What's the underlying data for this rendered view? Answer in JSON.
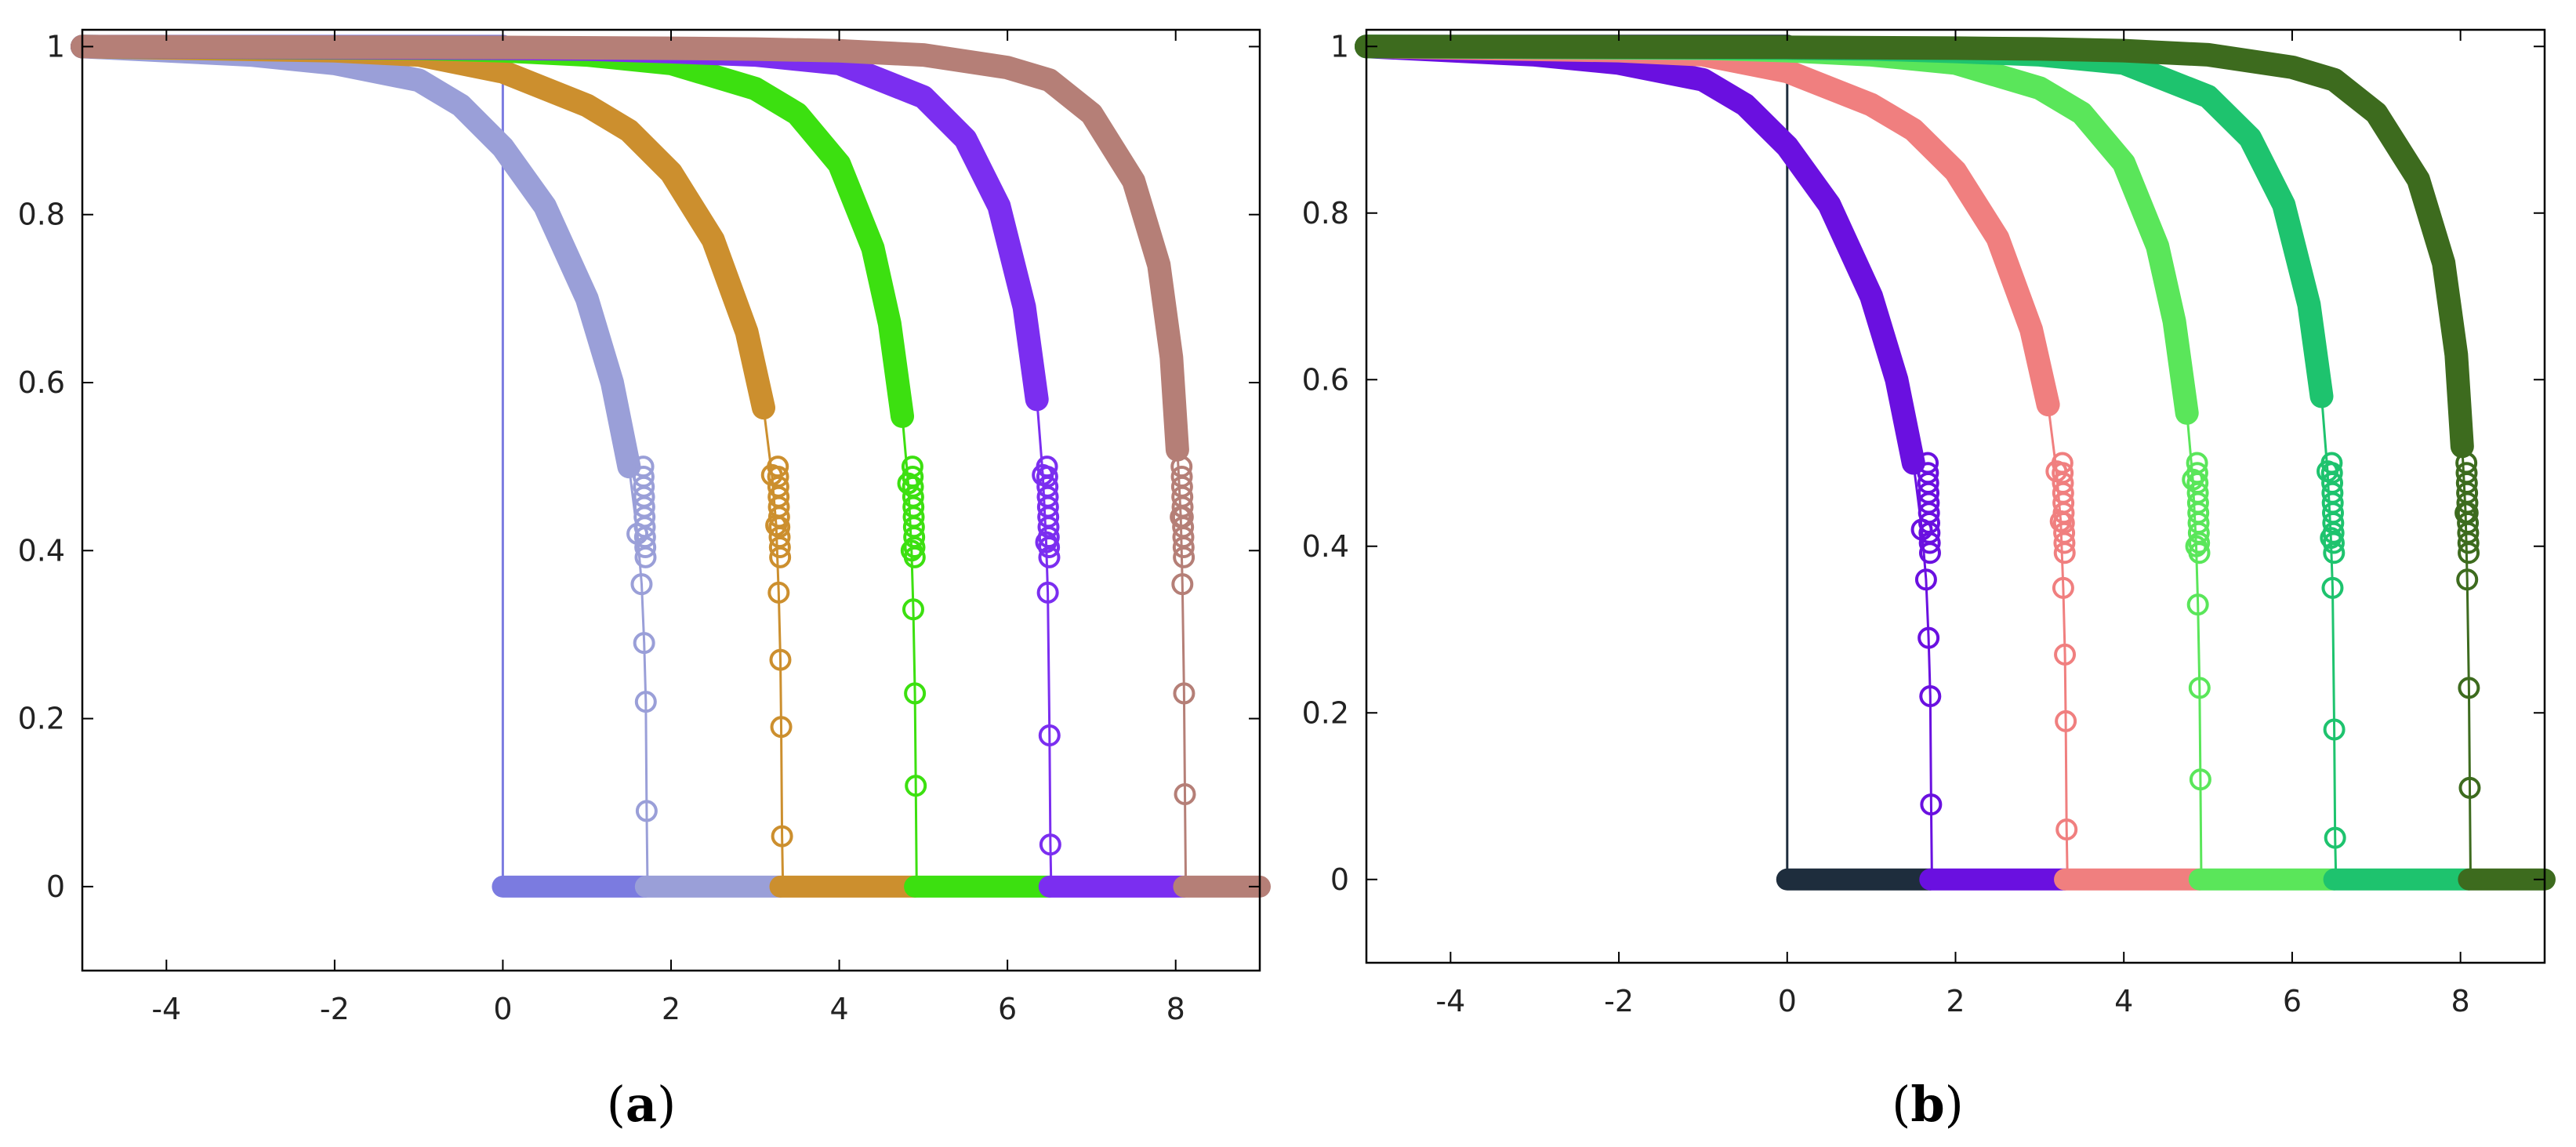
{
  "panels": [
    {
      "label_prefix": "(",
      "label_letter": "a",
      "label_suffix": ")"
    },
    {
      "label_prefix": "(",
      "label_letter": "b",
      "label_suffix": ")"
    }
  ],
  "chart_data": [
    {
      "type": "scatter",
      "title": "",
      "xlabel": "",
      "ylabel": "",
      "xlim": [
        -5,
        9
      ],
      "ylim": [
        -0.1,
        1.02
      ],
      "xticks": [
        -4,
        -2,
        0,
        2,
        4,
        6,
        8
      ],
      "xtick_labels": [
        "-4",
        "-2",
        "0",
        "2",
        "4",
        "6",
        "8"
      ],
      "yticks": [
        0,
        0.2,
        0.4,
        0.6,
        0.8,
        1
      ],
      "ytick_labels": [
        "0",
        "0.2",
        "0.4",
        "0.6",
        "0.8",
        "1"
      ],
      "grid": false,
      "legend": "none",
      "marker": "open-circle",
      "series": [
        {
          "color": "#7b7be0",
          "x0": 0,
          "values_note": "step",
          "x": [
            -5,
            -0.01,
            0.0,
            0.0,
            9
          ],
          "y": [
            1,
            1,
            1,
            0,
            0
          ]
        },
        {
          "color": "#9a9fd8",
          "x0": 1.7,
          "x": [
            -5,
            -3,
            -2,
            -1,
            -0.5,
            0,
            0.5,
            1.0,
            1.3,
            1.5,
            1.6,
            1.65,
            1.68,
            1.7,
            1.71,
            1.72,
            1.73,
            9
          ],
          "y": [
            1,
            0.99,
            0.98,
            0.96,
            0.93,
            0.88,
            0.81,
            0.7,
            0.6,
            0.5,
            0.42,
            0.36,
            0.29,
            0.22,
            0.09,
            0.0,
            0.0,
            0
          ]
        },
        {
          "color": "#cc8f2e",
          "x0": 3.3,
          "x": [
            -5,
            -2,
            -1,
            0,
            1,
            1.5,
            2,
            2.5,
            2.9,
            3.1,
            3.2,
            3.25,
            3.28,
            3.3,
            3.31,
            3.32,
            3.33,
            9
          ],
          "y": [
            1,
            0.995,
            0.99,
            0.97,
            0.93,
            0.9,
            0.85,
            0.77,
            0.66,
            0.57,
            0.49,
            0.43,
            0.35,
            0.27,
            0.19,
            0.06,
            0.0,
            0
          ]
        },
        {
          "color": "#3ce010",
          "x0": 4.9,
          "x": [
            -5,
            -1,
            0,
            1,
            2,
            3,
            3.5,
            4,
            4.4,
            4.6,
            4.75,
            4.82,
            4.86,
            4.88,
            4.9,
            4.91,
            4.92,
            9
          ],
          "y": [
            1,
            0.998,
            0.995,
            0.99,
            0.98,
            0.95,
            0.92,
            0.86,
            0.76,
            0.67,
            0.56,
            0.48,
            0.4,
            0.33,
            0.23,
            0.12,
            0.0,
            0
          ]
        },
        {
          "color": "#7b2ef0",
          "x0": 6.5,
          "x": [
            -5,
            0,
            1,
            2,
            3,
            4,
            5,
            5.5,
            5.9,
            6.2,
            6.35,
            6.42,
            6.46,
            6.48,
            6.5,
            6.51,
            6.52,
            9
          ],
          "y": [
            1,
            0.998,
            0.997,
            0.994,
            0.99,
            0.98,
            0.94,
            0.89,
            0.81,
            0.69,
            0.58,
            0.49,
            0.41,
            0.35,
            0.18,
            0.05,
            0.0,
            0
          ]
        },
        {
          "color": "#b57f77",
          "x0": 8.1,
          "x": [
            -5,
            0,
            2,
            3,
            4,
            5,
            6,
            6.5,
            7,
            7.5,
            7.8,
            7.95,
            8.02,
            8.06,
            8.08,
            8.1,
            8.11,
            8.12,
            9
          ],
          "y": [
            1,
            0.999,
            0.998,
            0.997,
            0.995,
            0.99,
            0.975,
            0.96,
            0.92,
            0.84,
            0.74,
            0.63,
            0.52,
            0.44,
            0.36,
            0.23,
            0.11,
            0.0,
            0
          ]
        }
      ]
    },
    {
      "type": "scatter",
      "title": "",
      "xlabel": "",
      "ylabel": "",
      "xlim": [
        -5,
        9
      ],
      "ylim": [
        -0.1,
        1.02
      ],
      "xticks": [
        -4,
        -2,
        0,
        2,
        4,
        6,
        8
      ],
      "xtick_labels": [
        "-4",
        "-2",
        "0",
        "2",
        "4",
        "6",
        "8"
      ],
      "yticks": [
        0,
        0.2,
        0.4,
        0.6,
        0.8,
        1
      ],
      "ytick_labels": [
        "0",
        "0.2",
        "0.4",
        "0.6",
        "0.8",
        "1"
      ],
      "grid": false,
      "legend": "none",
      "marker": "open-circle",
      "series": [
        {
          "color": "#1e2d3d",
          "x0": 0,
          "x": [
            -5,
            -0.01,
            0.0,
            0.0,
            9
          ],
          "y": [
            1,
            1,
            1,
            0,
            0
          ]
        },
        {
          "color": "#6a10e0",
          "x0": 1.7,
          "x": [
            -5,
            -3,
            -2,
            -1,
            -0.5,
            0,
            0.5,
            1.0,
            1.3,
            1.5,
            1.6,
            1.65,
            1.68,
            1.7,
            1.71,
            1.72,
            1.73,
            9
          ],
          "y": [
            1,
            0.99,
            0.98,
            0.96,
            0.93,
            0.88,
            0.81,
            0.7,
            0.6,
            0.5,
            0.42,
            0.36,
            0.29,
            0.22,
            0.09,
            0.0,
            0.0,
            0
          ]
        },
        {
          "color": "#f07f7f",
          "x0": 3.3,
          "x": [
            -5,
            -2,
            -1,
            0,
            1,
            1.5,
            2,
            2.5,
            2.9,
            3.1,
            3.2,
            3.25,
            3.28,
            3.3,
            3.31,
            3.32,
            3.33,
            9
          ],
          "y": [
            1,
            0.995,
            0.99,
            0.97,
            0.93,
            0.9,
            0.85,
            0.77,
            0.66,
            0.57,
            0.49,
            0.43,
            0.35,
            0.27,
            0.19,
            0.06,
            0.0,
            0
          ]
        },
        {
          "color": "#5ae65a",
          "x0": 4.9,
          "x": [
            -5,
            -1,
            0,
            1,
            2,
            3,
            3.5,
            4,
            4.4,
            4.6,
            4.75,
            4.82,
            4.86,
            4.88,
            4.9,
            4.91,
            4.92,
            9
          ],
          "y": [
            1,
            0.998,
            0.995,
            0.99,
            0.98,
            0.95,
            0.92,
            0.86,
            0.76,
            0.67,
            0.56,
            0.48,
            0.4,
            0.33,
            0.23,
            0.12,
            0.0,
            0
          ]
        },
        {
          "color": "#1ec36e",
          "x0": 6.5,
          "x": [
            -5,
            0,
            1,
            2,
            3,
            4,
            5,
            5.5,
            5.9,
            6.2,
            6.35,
            6.42,
            6.46,
            6.48,
            6.5,
            6.51,
            6.52,
            9
          ],
          "y": [
            1,
            0.998,
            0.997,
            0.994,
            0.99,
            0.98,
            0.94,
            0.89,
            0.81,
            0.69,
            0.58,
            0.49,
            0.41,
            0.35,
            0.18,
            0.05,
            0.0,
            0
          ]
        },
        {
          "color": "#3d6b1e",
          "x0": 8.1,
          "x": [
            -5,
            0,
            2,
            3,
            4,
            5,
            6,
            6.5,
            7,
            7.5,
            7.8,
            7.95,
            8.02,
            8.06,
            8.08,
            8.1,
            8.11,
            8.12,
            9
          ],
          "y": [
            1,
            0.999,
            0.998,
            0.997,
            0.995,
            0.99,
            0.975,
            0.96,
            0.92,
            0.84,
            0.74,
            0.63,
            0.52,
            0.44,
            0.36,
            0.23,
            0.11,
            0.0,
            0
          ]
        }
      ]
    }
  ]
}
